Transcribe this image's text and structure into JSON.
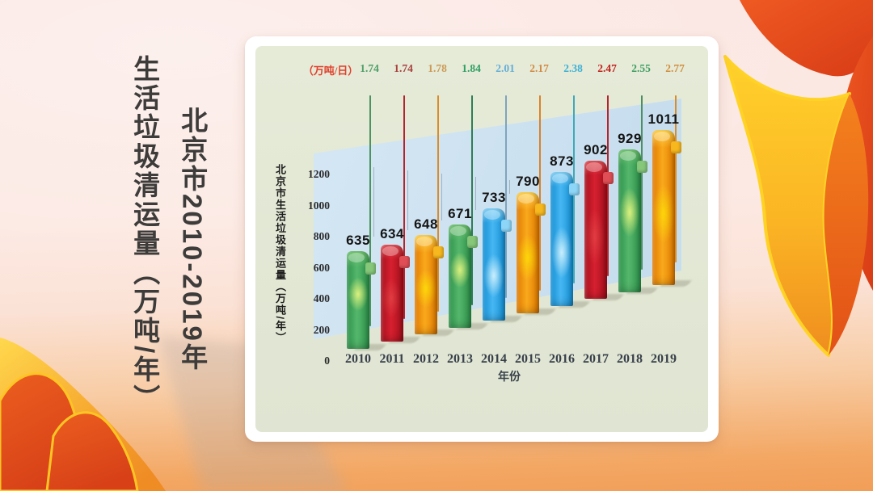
{
  "page_title": {
    "line1": "北京市2010-2019年",
    "line2": "生活垃圾清运量（万吨/年）"
  },
  "chart_data": {
    "type": "bar",
    "y_axis_title": "北京市生活垃圾清运量（万吨/年）",
    "xlabel": "年份",
    "daily_unit_label": "（万吨/日）",
    "categories": [
      "2010",
      "2011",
      "2012",
      "2013",
      "2014",
      "2015",
      "2016",
      "2017",
      "2018",
      "2019"
    ],
    "series": [
      {
        "name": "北京市生活垃圾清运量（万吨/年）",
        "values": [
          635,
          634,
          648,
          671,
          733,
          790,
          873,
          902,
          929,
          1011
        ]
      },
      {
        "name": "（万吨/日）",
        "values": [
          1.74,
          1.74,
          1.78,
          1.84,
          2.01,
          2.17,
          2.38,
          2.47,
          2.55,
          2.77
        ]
      }
    ],
    "y_ticks": [
      1200,
      1000,
      800,
      600,
      400,
      200,
      0
    ],
    "ylim": [
      0,
      1300
    ],
    "grid": false,
    "legend_position": "none",
    "bar_color_names": [
      "green",
      "red",
      "orange",
      "green",
      "blue",
      "orange",
      "blue",
      "red",
      "green",
      "orange"
    ],
    "daily_value_colors": [
      "#4e9e68",
      "#a8403e",
      "#cb9a55",
      "#2f9e63",
      "#64aed6",
      "#d08a44",
      "#3fb0d4",
      "#c2231f",
      "#3f9e62",
      "#d08f3f"
    ],
    "stem_colors": [
      "#4b9460",
      "#b5242c",
      "#d98d2a",
      "#2e7d55",
      "#7fa3bd",
      "#d9832a",
      "#3fa9b8",
      "#b5242c",
      "#4b8f63",
      "#d98d2a"
    ]
  },
  "palette": {
    "green": {
      "tab": "#86c77a"
    },
    "red": {
      "tab": "#df4f55"
    },
    "orange": {
      "tab": "#f7b81e"
    },
    "blue": {
      "tab": "#8ed6f8"
    },
    "back_wall": "#cde1f0",
    "card_bg": "#ffffff",
    "panel_bg": "#e3e8d5",
    "unit_label_color": "#e0402c"
  }
}
